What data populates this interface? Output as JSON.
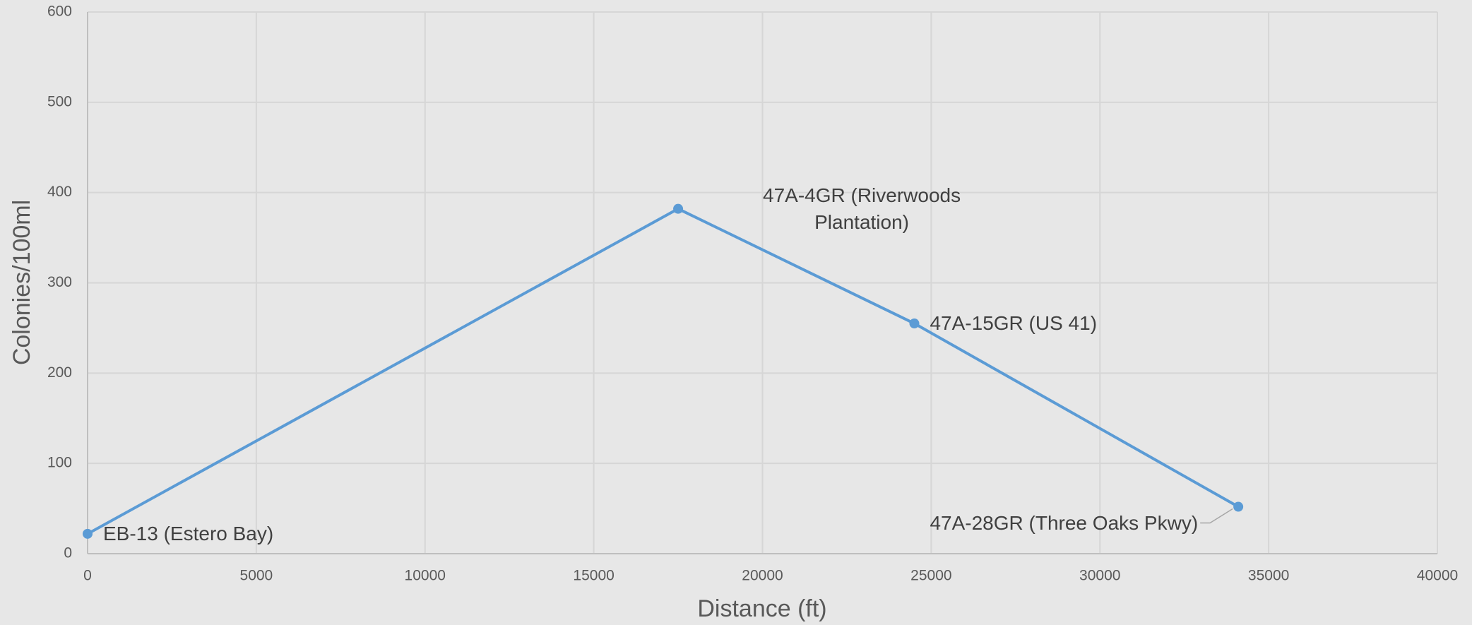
{
  "chart_data": {
    "type": "line",
    "x_label": "Distance (ft)",
    "y_label": "Colonies/100ml",
    "x": [
      0,
      17500,
      24500,
      34100
    ],
    "series": [
      {
        "color": "#5b9bd5",
        "values": [
          22,
          382,
          255,
          52
        ]
      }
    ],
    "point_labels": [
      "EB-13 (Estero Bay)",
      "47A-4GR (Riverwoods Plantation)",
      "47A-15GR (US 41)",
      "47A-28GR (Three Oaks Pkwy)"
    ],
    "xlim": [
      0,
      40000
    ],
    "xticks": [
      0,
      5000,
      10000,
      15000,
      20000,
      25000,
      30000,
      35000,
      40000
    ],
    "ylim": [
      0,
      600
    ],
    "yticks": [
      0,
      100,
      200,
      300,
      400,
      500,
      600
    ],
    "grid": true
  }
}
